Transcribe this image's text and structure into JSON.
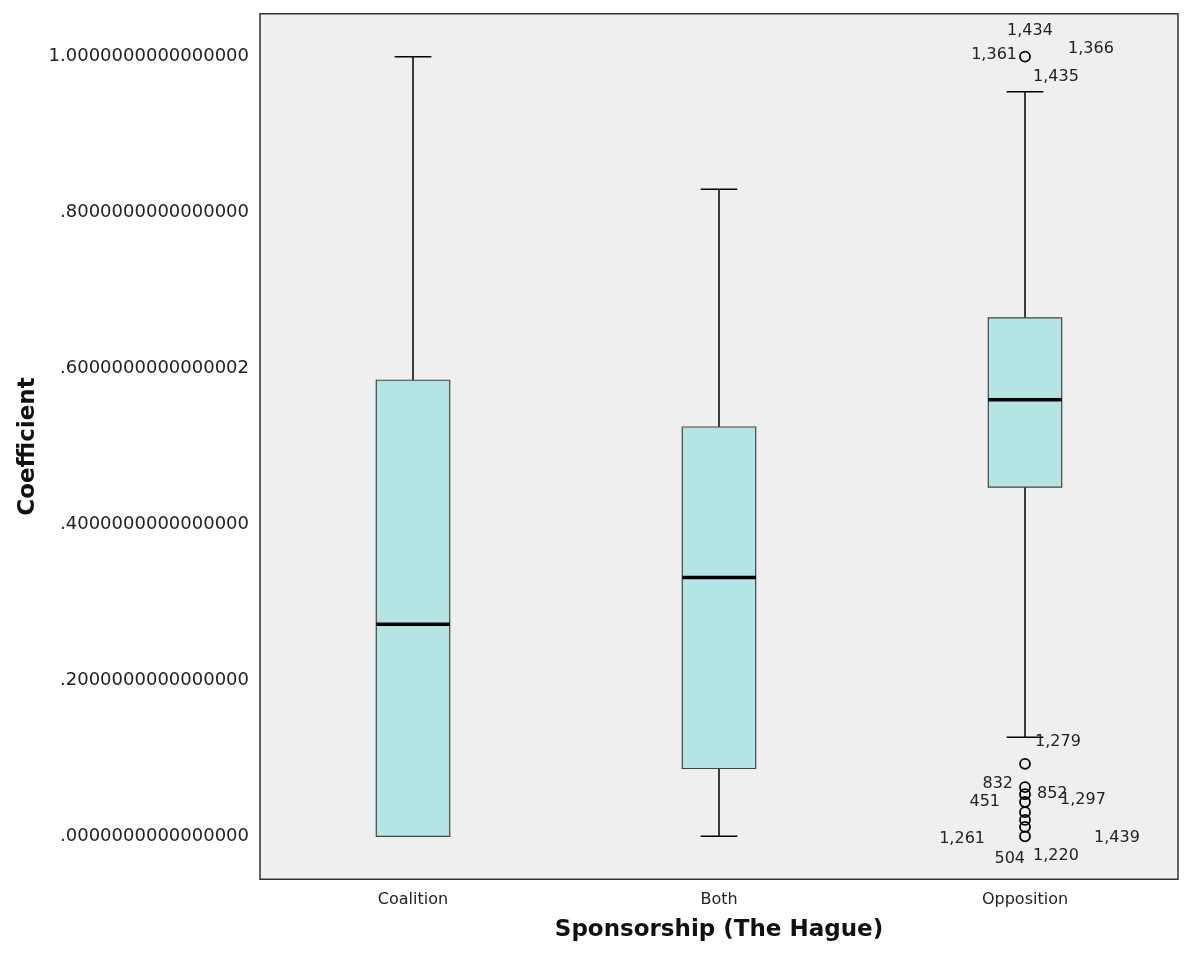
{
  "chart_data": {
    "type": "box",
    "xlabel": "Sponsorship (The Hague)",
    "ylabel": "Coefficient",
    "categories": [
      "Coalition",
      "Both",
      "Opposition"
    ],
    "boxes": [
      {
        "low": 0,
        "q1": 0,
        "median": 0.272,
        "q3": 0.585,
        "high": 1.0
      },
      {
        "low": 0,
        "q1": 0.087,
        "median": 0.332,
        "q3": 0.525,
        "high": 0.83
      },
      {
        "low": 0.127,
        "q1": 0.448,
        "median": 0.56,
        "q3": 0.665,
        "high": 0.955,
        "outliers": [
          1.0,
          0.093,
          0.063,
          0.054,
          0.044,
          0.031,
          0.021,
          0.012,
          0
        ]
      }
    ],
    "color": "#b4e4e4",
    "ylim": [
      -0.055,
      1.055
    ],
    "yticks": [
      {
        "value": 0,
        "label": ".0000000000000000"
      },
      {
        "value": 0.2,
        "label": ".2000000000000000"
      },
      {
        "value": 0.4,
        "label": ".4000000000000000"
      },
      {
        "value": 0.6,
        "label": ".6000000000000002"
      },
      {
        "value": 0.8,
        "label": ".8000000000000000"
      },
      {
        "value": 1.0,
        "label": "1.0000000000000000"
      }
    ],
    "annotations": [
      "1,434",
      "1,361",
      "1,366",
      "1,435",
      "1,279",
      "832",
      "852",
      "451",
      "1,297",
      "1,261",
      "1,439",
      "504",
      "1,220"
    ],
    "grid": false,
    "legend": false
  }
}
